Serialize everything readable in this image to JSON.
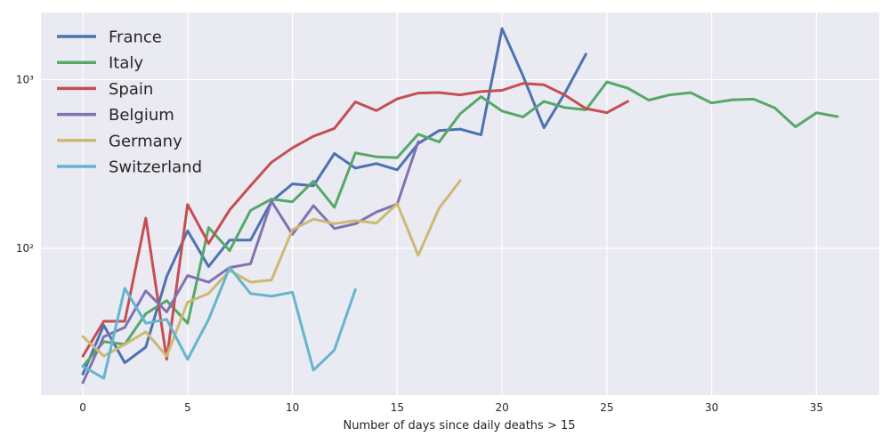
{
  "chart_data": {
    "type": "line",
    "title": "",
    "xlabel": "Number of days since daily deaths > 15",
    "ylabel": "",
    "xlim": [
      -2,
      38
    ],
    "ylim": [
      13.5,
      2500
    ],
    "yscale": "log",
    "grid": true,
    "legend_position": "top-left",
    "x_ticks": [
      0,
      5,
      10,
      15,
      20,
      25,
      30,
      35
    ],
    "x_tick_labels": [
      "0",
      "5",
      "10",
      "15",
      "20",
      "25",
      "30",
      "35"
    ],
    "y_ticks": [
      100,
      1000
    ],
    "y_tick_labels": [
      "10²",
      "10³"
    ],
    "series": [
      {
        "name": "France",
        "color": "#4c72b0",
        "values": [
          18,
          35,
          21,
          26,
          68,
          127,
          78,
          112,
          112,
          190,
          241,
          235,
          365,
          299,
          318,
          292,
          418,
          499,
          509,
          471,
          2004,
          1053,
          518,
          833,
          1417
        ]
      },
      {
        "name": "Italy",
        "color": "#55a868",
        "values": [
          20,
          28,
          27,
          41,
          49,
          36,
          133,
          97,
          168,
          196,
          189,
          250,
          175,
          368,
          349,
          345,
          475,
          427,
          627,
          793,
          651,
          601,
          743,
          683,
          662,
          969,
          889,
          756,
          812,
          837,
          727,
          760,
          766,
          681,
          525,
          636,
          604
        ]
      },
      {
        "name": "Spain",
        "color": "#c44e52",
        "values": [
          23,
          37,
          37,
          151,
          22,
          182,
          107,
          169,
          235,
          324,
          394,
          462,
          514,
          738,
          655,
          769,
          832,
          838,
          812,
          849,
          864,
          950,
          932,
          809,
          674,
          637,
          743
        ]
      },
      {
        "name": "Belgium",
        "color": "#8172b2",
        "values": [
          16,
          30,
          34,
          56,
          42,
          69,
          63,
          77,
          81,
          190,
          121,
          179,
          131,
          140,
          164,
          183,
          429
        ]
      },
      {
        "name": "Germany",
        "color": "#ccb974",
        "values": [
          30,
          23,
          27,
          32,
          23,
          48,
          54,
          74,
          63,
          65,
          129,
          149,
          140,
          146,
          141,
          184,
          91,
          173,
          252
        ]
      },
      {
        "name": "Switzerland",
        "color": "#64b5cd",
        "values": [
          20,
          17,
          58,
          36,
          38,
          22,
          38,
          77,
          54,
          52,
          55,
          19,
          25,
          57
        ]
      }
    ]
  }
}
